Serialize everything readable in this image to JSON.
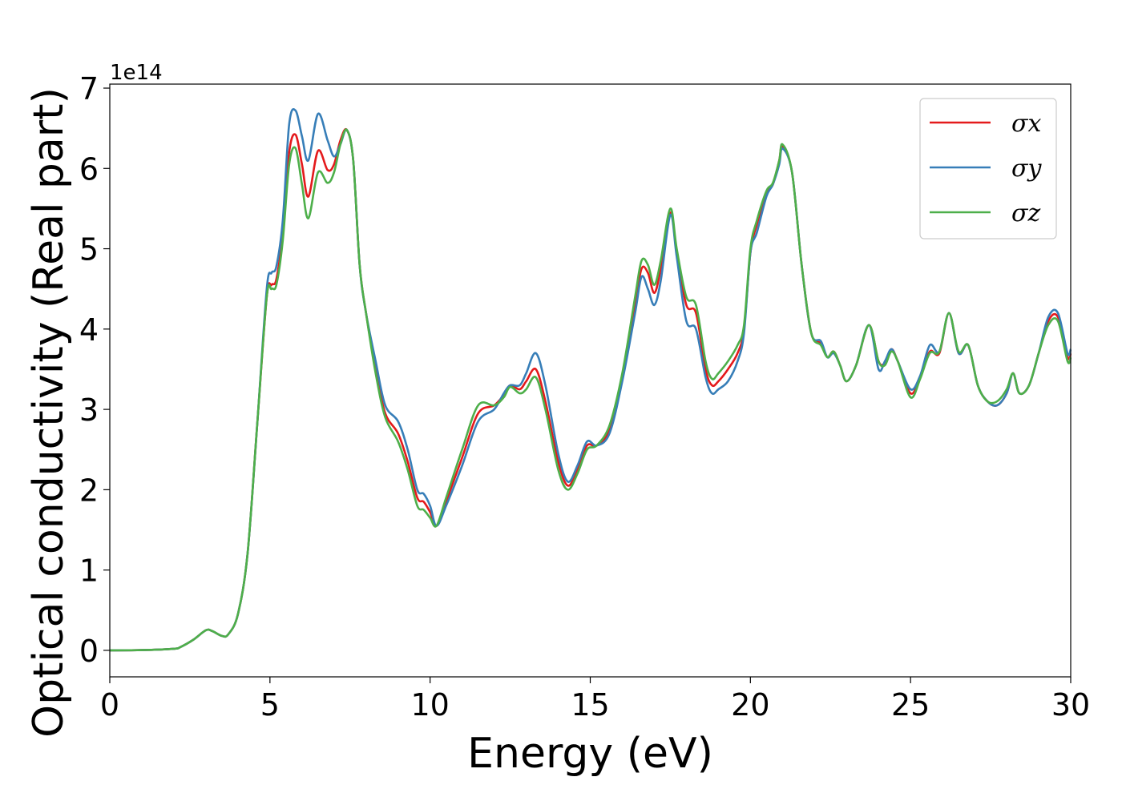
{
  "chart_data": {
    "type": "line",
    "xlabel": "Energy (eV)",
    "ylabel": "Optical conductivity (Real part)",
    "y_offset_label": "1e14",
    "y_scale": 100000000000000.0,
    "xlim": [
      0,
      30
    ],
    "ylim": [
      -0.33,
      7.05
    ],
    "x_ticks": [
      0,
      5,
      10,
      15,
      20,
      25,
      30
    ],
    "y_ticks": [
      0,
      1,
      2,
      3,
      4,
      5,
      6,
      7
    ],
    "grid": false,
    "legend_position": "top-right",
    "x": [
      0,
      1,
      2,
      2.2,
      2.6,
      3.0,
      3.2,
      3.5,
      3.7,
      4.0,
      4.3,
      4.6,
      4.9,
      5.05,
      5.2,
      5.4,
      5.6,
      5.8,
      6.0,
      6.2,
      6.5,
      6.8,
      7.0,
      7.2,
      7.4,
      7.6,
      7.8,
      8.0,
      8.3,
      8.6,
      9.0,
      9.3,
      9.6,
      9.8,
      10.0,
      10.2,
      10.5,
      11.0,
      11.5,
      12.0,
      12.3,
      12.5,
      12.8,
      13.0,
      13.3,
      13.6,
      14.0,
      14.3,
      14.6,
      14.9,
      15.2,
      15.6,
      16.0,
      16.4,
      16.6,
      16.8,
      17.0,
      17.2,
      17.5,
      17.7,
      18.0,
      18.3,
      18.6,
      18.8,
      19.0,
      19.3,
      19.6,
      19.8,
      20.0,
      20.2,
      20.5,
      20.7,
      20.9,
      21.0,
      21.3,
      21.6,
      21.9,
      22.2,
      22.4,
      22.6,
      22.8,
      23.0,
      23.3,
      23.7,
      24.0,
      24.2,
      24.4,
      24.6,
      25.0,
      25.3,
      25.6,
      25.9,
      26.2,
      26.5,
      26.8,
      27.1,
      27.4,
      27.7,
      28.0,
      28.2,
      28.4,
      28.7,
      29.0,
      29.3,
      29.6,
      29.9,
      30.0
    ],
    "series": [
      {
        "name": "σx",
        "color": "#e41a1c",
        "values": [
          0,
          0.003,
          0.02,
          0.04,
          0.13,
          0.25,
          0.24,
          0.18,
          0.2,
          0.45,
          1.2,
          2.8,
          4.4,
          4.55,
          4.62,
          5.2,
          6.2,
          6.42,
          6.05,
          5.65,
          6.22,
          5.98,
          6.05,
          6.35,
          6.48,
          6.1,
          4.8,
          4.2,
          3.5,
          2.95,
          2.7,
          2.35,
          1.9,
          1.85,
          1.72,
          1.55,
          1.85,
          2.4,
          2.95,
          3.05,
          3.18,
          3.3,
          3.25,
          3.35,
          3.5,
          3.1,
          2.35,
          2.05,
          2.25,
          2.55,
          2.55,
          2.75,
          3.4,
          4.3,
          4.75,
          4.7,
          4.45,
          4.75,
          5.45,
          4.95,
          4.3,
          4.2,
          3.5,
          3.3,
          3.35,
          3.5,
          3.7,
          4.0,
          4.95,
          5.3,
          5.7,
          5.8,
          6.1,
          6.28,
          5.95,
          4.8,
          3.95,
          3.82,
          3.65,
          3.72,
          3.55,
          3.35,
          3.55,
          4.05,
          3.6,
          3.58,
          3.75,
          3.6,
          3.2,
          3.4,
          3.72,
          3.7,
          4.2,
          3.7,
          3.8,
          3.3,
          3.1,
          3.05,
          3.2,
          3.45,
          3.2,
          3.3,
          3.7,
          4.1,
          4.15,
          3.65,
          3.7
        ]
      },
      {
        "name": "σy",
        "color": "#377eb8",
        "values": [
          0,
          0.003,
          0.02,
          0.04,
          0.13,
          0.25,
          0.24,
          0.18,
          0.2,
          0.45,
          1.2,
          2.8,
          4.5,
          4.7,
          4.78,
          5.35,
          6.55,
          6.72,
          6.4,
          6.1,
          6.68,
          6.35,
          6.15,
          6.3,
          6.48,
          6.1,
          4.8,
          4.2,
          3.6,
          3.05,
          2.85,
          2.5,
          2.0,
          1.95,
          1.8,
          1.55,
          1.8,
          2.3,
          2.85,
          3.0,
          3.2,
          3.3,
          3.3,
          3.45,
          3.7,
          3.3,
          2.45,
          2.1,
          2.3,
          2.6,
          2.55,
          2.7,
          3.35,
          4.2,
          4.65,
          4.5,
          4.3,
          4.6,
          5.42,
          4.9,
          4.1,
          4.0,
          3.4,
          3.2,
          3.25,
          3.35,
          3.6,
          3.95,
          4.95,
          5.2,
          5.65,
          5.8,
          6.05,
          6.25,
          5.95,
          4.8,
          3.95,
          3.85,
          3.65,
          3.7,
          3.55,
          3.35,
          3.55,
          4.05,
          3.5,
          3.6,
          3.75,
          3.6,
          3.25,
          3.42,
          3.8,
          3.72,
          4.2,
          3.7,
          3.8,
          3.3,
          3.1,
          3.05,
          3.2,
          3.45,
          3.2,
          3.3,
          3.7,
          4.15,
          4.2,
          3.7,
          3.75
        ]
      },
      {
        "name": "σz",
        "color": "#4daf4a",
        "values": [
          0,
          0.003,
          0.02,
          0.04,
          0.13,
          0.25,
          0.24,
          0.18,
          0.2,
          0.45,
          1.2,
          2.8,
          4.4,
          4.5,
          4.55,
          5.1,
          6.05,
          6.25,
          5.8,
          5.38,
          5.95,
          5.82,
          5.95,
          6.3,
          6.48,
          6.1,
          4.8,
          4.2,
          3.45,
          2.9,
          2.6,
          2.25,
          1.8,
          1.75,
          1.65,
          1.55,
          1.9,
          2.5,
          3.05,
          3.05,
          3.15,
          3.28,
          3.2,
          3.25,
          3.4,
          3.0,
          2.25,
          2.0,
          2.2,
          2.5,
          2.55,
          2.8,
          3.45,
          4.4,
          4.85,
          4.8,
          4.55,
          4.85,
          5.5,
          5.0,
          4.4,
          4.3,
          3.6,
          3.38,
          3.45,
          3.6,
          3.8,
          4.05,
          5.0,
          5.35,
          5.72,
          5.82,
          6.1,
          6.3,
          5.95,
          4.8,
          3.95,
          3.8,
          3.65,
          3.72,
          3.55,
          3.35,
          3.55,
          4.05,
          3.6,
          3.55,
          3.72,
          3.6,
          3.15,
          3.38,
          3.7,
          3.72,
          4.2,
          3.72,
          3.8,
          3.3,
          3.1,
          3.1,
          3.25,
          3.45,
          3.2,
          3.3,
          3.7,
          4.05,
          4.1,
          3.6,
          3.65
        ]
      }
    ]
  }
}
